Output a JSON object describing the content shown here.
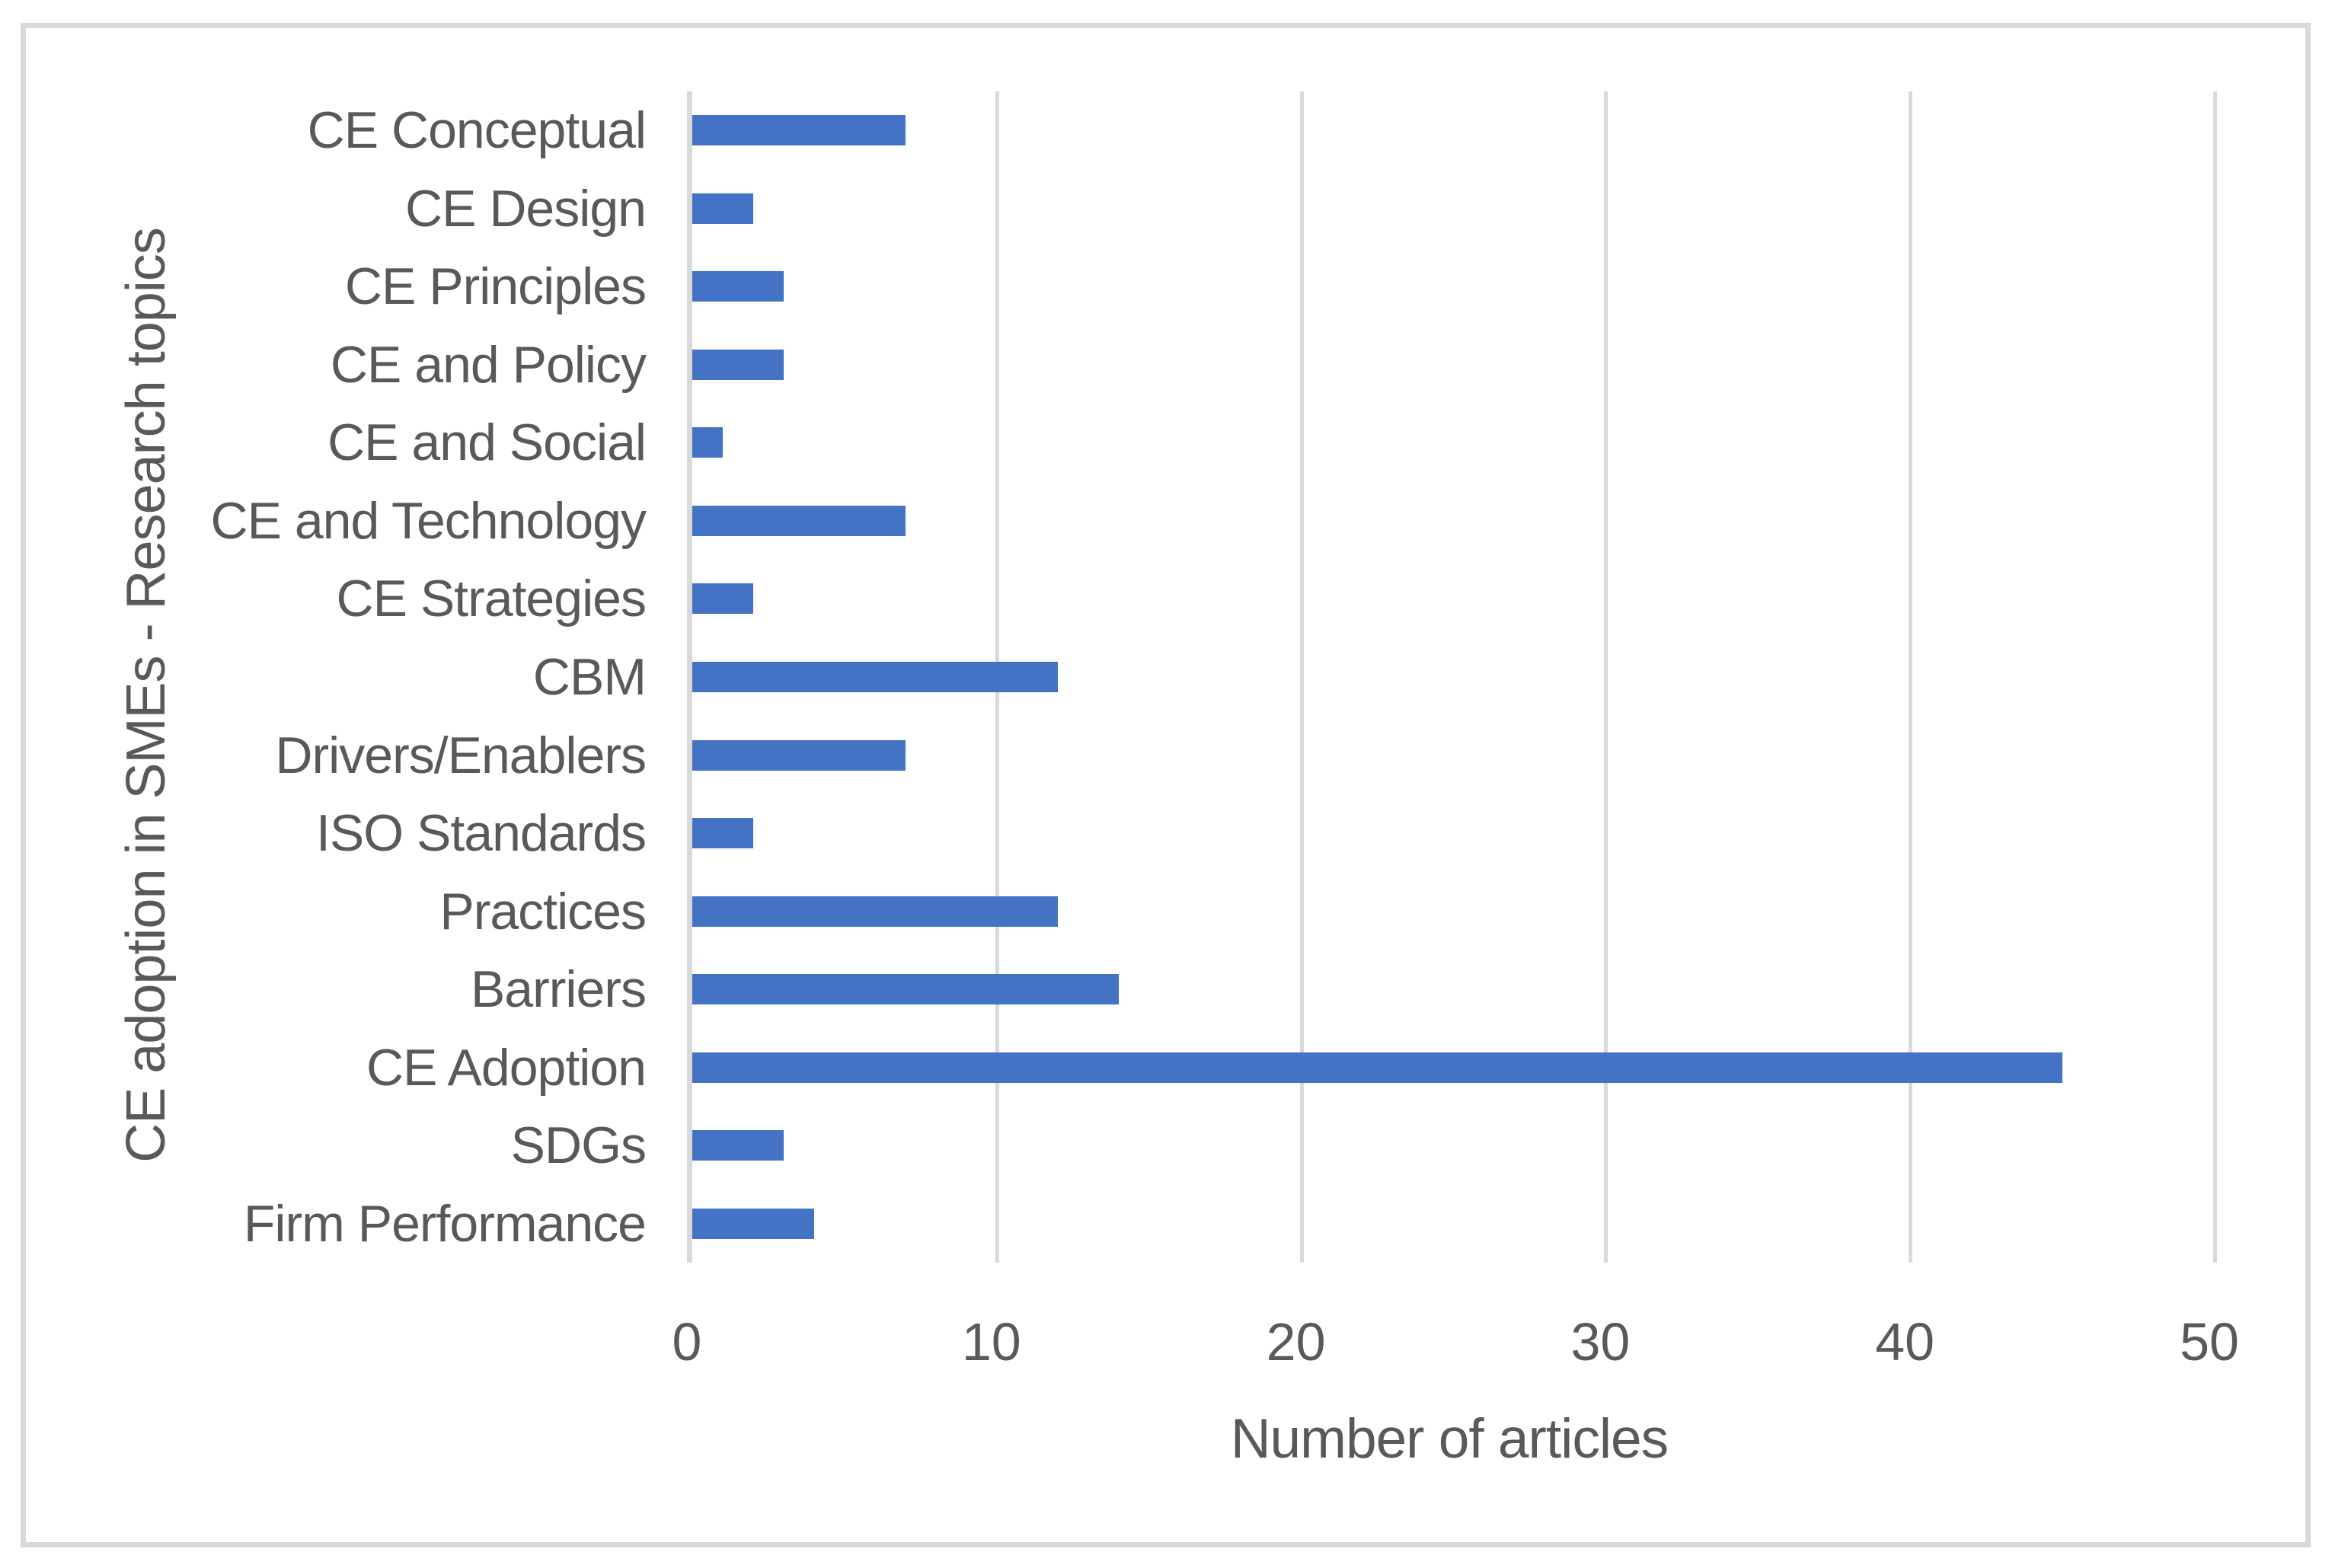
{
  "chart_data": {
    "type": "bar",
    "orientation": "horizontal",
    "title": "",
    "categories": [
      "CE Conceptual",
      "CE Design",
      "CE Principles",
      "CE and Policy",
      "CE and Social",
      "CE and Technology",
      "CE Strategies",
      "CBM",
      "Drivers/Enablers",
      "ISO Standards",
      "Practices",
      "Barriers",
      "CE Adoption",
      "SDGs",
      "Firm Performance"
    ],
    "values": [
      7,
      2,
      3,
      3,
      1,
      7,
      2,
      12,
      7,
      2,
      12,
      14,
      45,
      3,
      4
    ],
    "xlabel": "Number of articles",
    "ylabel": "CE adoption in SMEs - Research topics",
    "xlim": [
      0,
      50
    ],
    "xticks": [
      0,
      10,
      20,
      30,
      40,
      50
    ],
    "grid": true,
    "legend": "none",
    "colors": {
      "bar": "#4472c4",
      "gridline": "#d9d9d9",
      "axis_line": "#d9d9d9",
      "text": "#595959",
      "frame_border": "#d9d9d9",
      "background": "#ffffff"
    }
  }
}
